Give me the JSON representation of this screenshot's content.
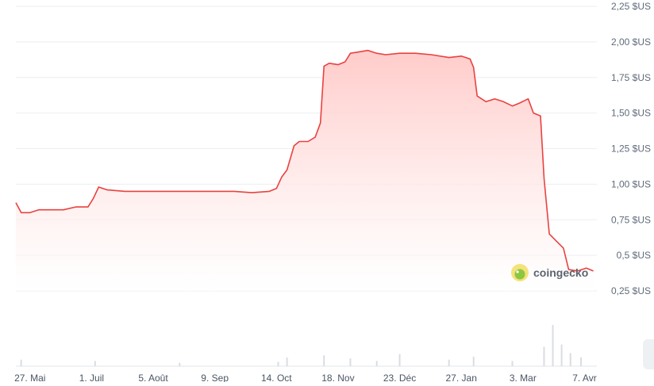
{
  "watermark": {
    "text": "coingecko",
    "icon": "gecko-logo-icon"
  },
  "chart_data": {
    "type": "area",
    "currency_suffix": "$US",
    "yticks": [
      {
        "value": 2.25,
        "label": "2,25 $US"
      },
      {
        "value": 2.0,
        "label": "2,00 $US"
      },
      {
        "value": 1.75,
        "label": "1,75 $US"
      },
      {
        "value": 1.5,
        "label": "1,50 $US"
      },
      {
        "value": 1.25,
        "label": "1,25 $US"
      },
      {
        "value": 1.0,
        "label": "1,00 $US"
      },
      {
        "value": 0.75,
        "label": "0,75 $US"
      },
      {
        "value": 0.5,
        "label": "0,5 $US"
      },
      {
        "value": 0.25,
        "label": "0,25 $US"
      }
    ],
    "xticks": [
      {
        "date": "2024-05-27",
        "label": "27. Mai"
      },
      {
        "date": "2024-07-01",
        "label": "1. Juil"
      },
      {
        "date": "2024-08-05",
        "label": "5. Août"
      },
      {
        "date": "2024-09-09",
        "label": "9. Sep"
      },
      {
        "date": "2024-10-14",
        "label": "14. Oct"
      },
      {
        "date": "2024-11-18",
        "label": "18. Nov"
      },
      {
        "date": "2024-12-23",
        "label": "23. Déc"
      },
      {
        "date": "2025-01-27",
        "label": "27. Jan"
      },
      {
        "date": "2025-03-03",
        "label": "3. Mar"
      },
      {
        "date": "2025-04-07",
        "label": "7. Avr"
      }
    ],
    "xlim": [
      "2024-05-19",
      "2025-04-14"
    ],
    "ylim": [
      0.25,
      2.25
    ],
    "grid": true,
    "line_color": "#e8423f",
    "fill_color": "#ffc9c7",
    "series": [
      {
        "points": [
          [
            "2024-05-19",
            0.87
          ],
          [
            "2024-05-22",
            0.8
          ],
          [
            "2024-05-27",
            0.8
          ],
          [
            "2024-06-01",
            0.82
          ],
          [
            "2024-06-08",
            0.82
          ],
          [
            "2024-06-15",
            0.82
          ],
          [
            "2024-06-22",
            0.84
          ],
          [
            "2024-06-29",
            0.84
          ],
          [
            "2024-07-02",
            0.9
          ],
          [
            "2024-07-05",
            0.98
          ],
          [
            "2024-07-10",
            0.96
          ],
          [
            "2024-07-20",
            0.95
          ],
          [
            "2024-07-30",
            0.95
          ],
          [
            "2024-08-10",
            0.95
          ],
          [
            "2024-08-20",
            0.95
          ],
          [
            "2024-09-01",
            0.95
          ],
          [
            "2024-09-10",
            0.95
          ],
          [
            "2024-09-20",
            0.95
          ],
          [
            "2024-09-30",
            0.94
          ],
          [
            "2024-10-10",
            0.95
          ],
          [
            "2024-10-14",
            0.97
          ],
          [
            "2024-10-17",
            1.05
          ],
          [
            "2024-10-20",
            1.1
          ],
          [
            "2024-10-24",
            1.27
          ],
          [
            "2024-10-27",
            1.3
          ],
          [
            "2024-11-01",
            1.3
          ],
          [
            "2024-11-05",
            1.33
          ],
          [
            "2024-11-08",
            1.43
          ],
          [
            "2024-11-10",
            1.83
          ],
          [
            "2024-11-13",
            1.85
          ],
          [
            "2024-11-18",
            1.84
          ],
          [
            "2024-11-22",
            1.86
          ],
          [
            "2024-11-25",
            1.92
          ],
          [
            "2024-11-30",
            1.93
          ],
          [
            "2024-12-05",
            1.94
          ],
          [
            "2024-12-10",
            1.92
          ],
          [
            "2024-12-15",
            1.91
          ],
          [
            "2024-12-23",
            1.92
          ],
          [
            "2025-01-01",
            1.92
          ],
          [
            "2025-01-10",
            1.91
          ],
          [
            "2025-01-20",
            1.89
          ],
          [
            "2025-01-27",
            1.9
          ],
          [
            "2025-02-01",
            1.88
          ],
          [
            "2025-02-03",
            1.82
          ],
          [
            "2025-02-05",
            1.62
          ],
          [
            "2025-02-10",
            1.58
          ],
          [
            "2025-02-15",
            1.6
          ],
          [
            "2025-02-20",
            1.58
          ],
          [
            "2025-02-25",
            1.55
          ],
          [
            "2025-03-01",
            1.57
          ],
          [
            "2025-03-06",
            1.6
          ],
          [
            "2025-03-09",
            1.5
          ],
          [
            "2025-03-13",
            1.48
          ],
          [
            "2025-03-15",
            1.04
          ],
          [
            "2025-03-18",
            0.65
          ],
          [
            "2025-03-22",
            0.6
          ],
          [
            "2025-03-26",
            0.55
          ],
          [
            "2025-03-29",
            0.4
          ],
          [
            "2025-04-03",
            0.39
          ],
          [
            "2025-04-08",
            0.41
          ],
          [
            "2025-04-12",
            0.39
          ]
        ]
      }
    ],
    "volume": [
      [
        "2024-05-22",
        0.15
      ],
      [
        "2024-07-03",
        0.12
      ],
      [
        "2024-08-20",
        0.08
      ],
      [
        "2024-10-15",
        0.1
      ],
      [
        "2024-10-20",
        0.2
      ],
      [
        "2024-11-10",
        0.25
      ],
      [
        "2024-11-25",
        0.18
      ],
      [
        "2024-12-10",
        0.12
      ],
      [
        "2024-12-23",
        0.28
      ],
      [
        "2025-01-20",
        0.15
      ],
      [
        "2025-02-03",
        0.22
      ],
      [
        "2025-02-25",
        0.12
      ],
      [
        "2025-03-15",
        0.45
      ],
      [
        "2025-03-20",
        0.95
      ],
      [
        "2025-03-25",
        0.5
      ],
      [
        "2025-03-30",
        0.3
      ],
      [
        "2025-04-05",
        0.2
      ]
    ]
  }
}
